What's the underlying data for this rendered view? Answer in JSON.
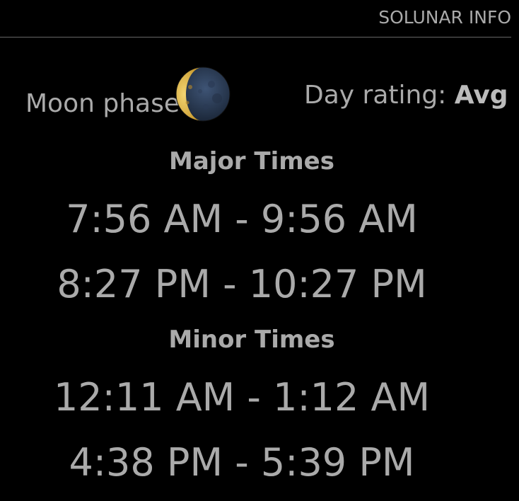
{
  "header": {
    "title": "SOLUNAR INFO"
  },
  "moon": {
    "label": "Moon phase:",
    "icon": "waxing-crescent-moon-icon"
  },
  "day_rating": {
    "label": "Day rating:",
    "value": "Avg"
  },
  "major": {
    "title": "Major Times",
    "times": [
      "7:56 AM - 9:56 AM",
      "8:27 PM - 10:27 PM"
    ]
  },
  "minor": {
    "title": "Minor Times",
    "times": [
      "12:11 AM - 1:12 AM",
      "4:38 PM - 5:39 PM"
    ]
  },
  "colors": {
    "background": "#000000",
    "text": "#aaaaaa",
    "divider": "#666666",
    "moon_lit": "#e8c35a",
    "moon_dark": "#2a3a52"
  }
}
